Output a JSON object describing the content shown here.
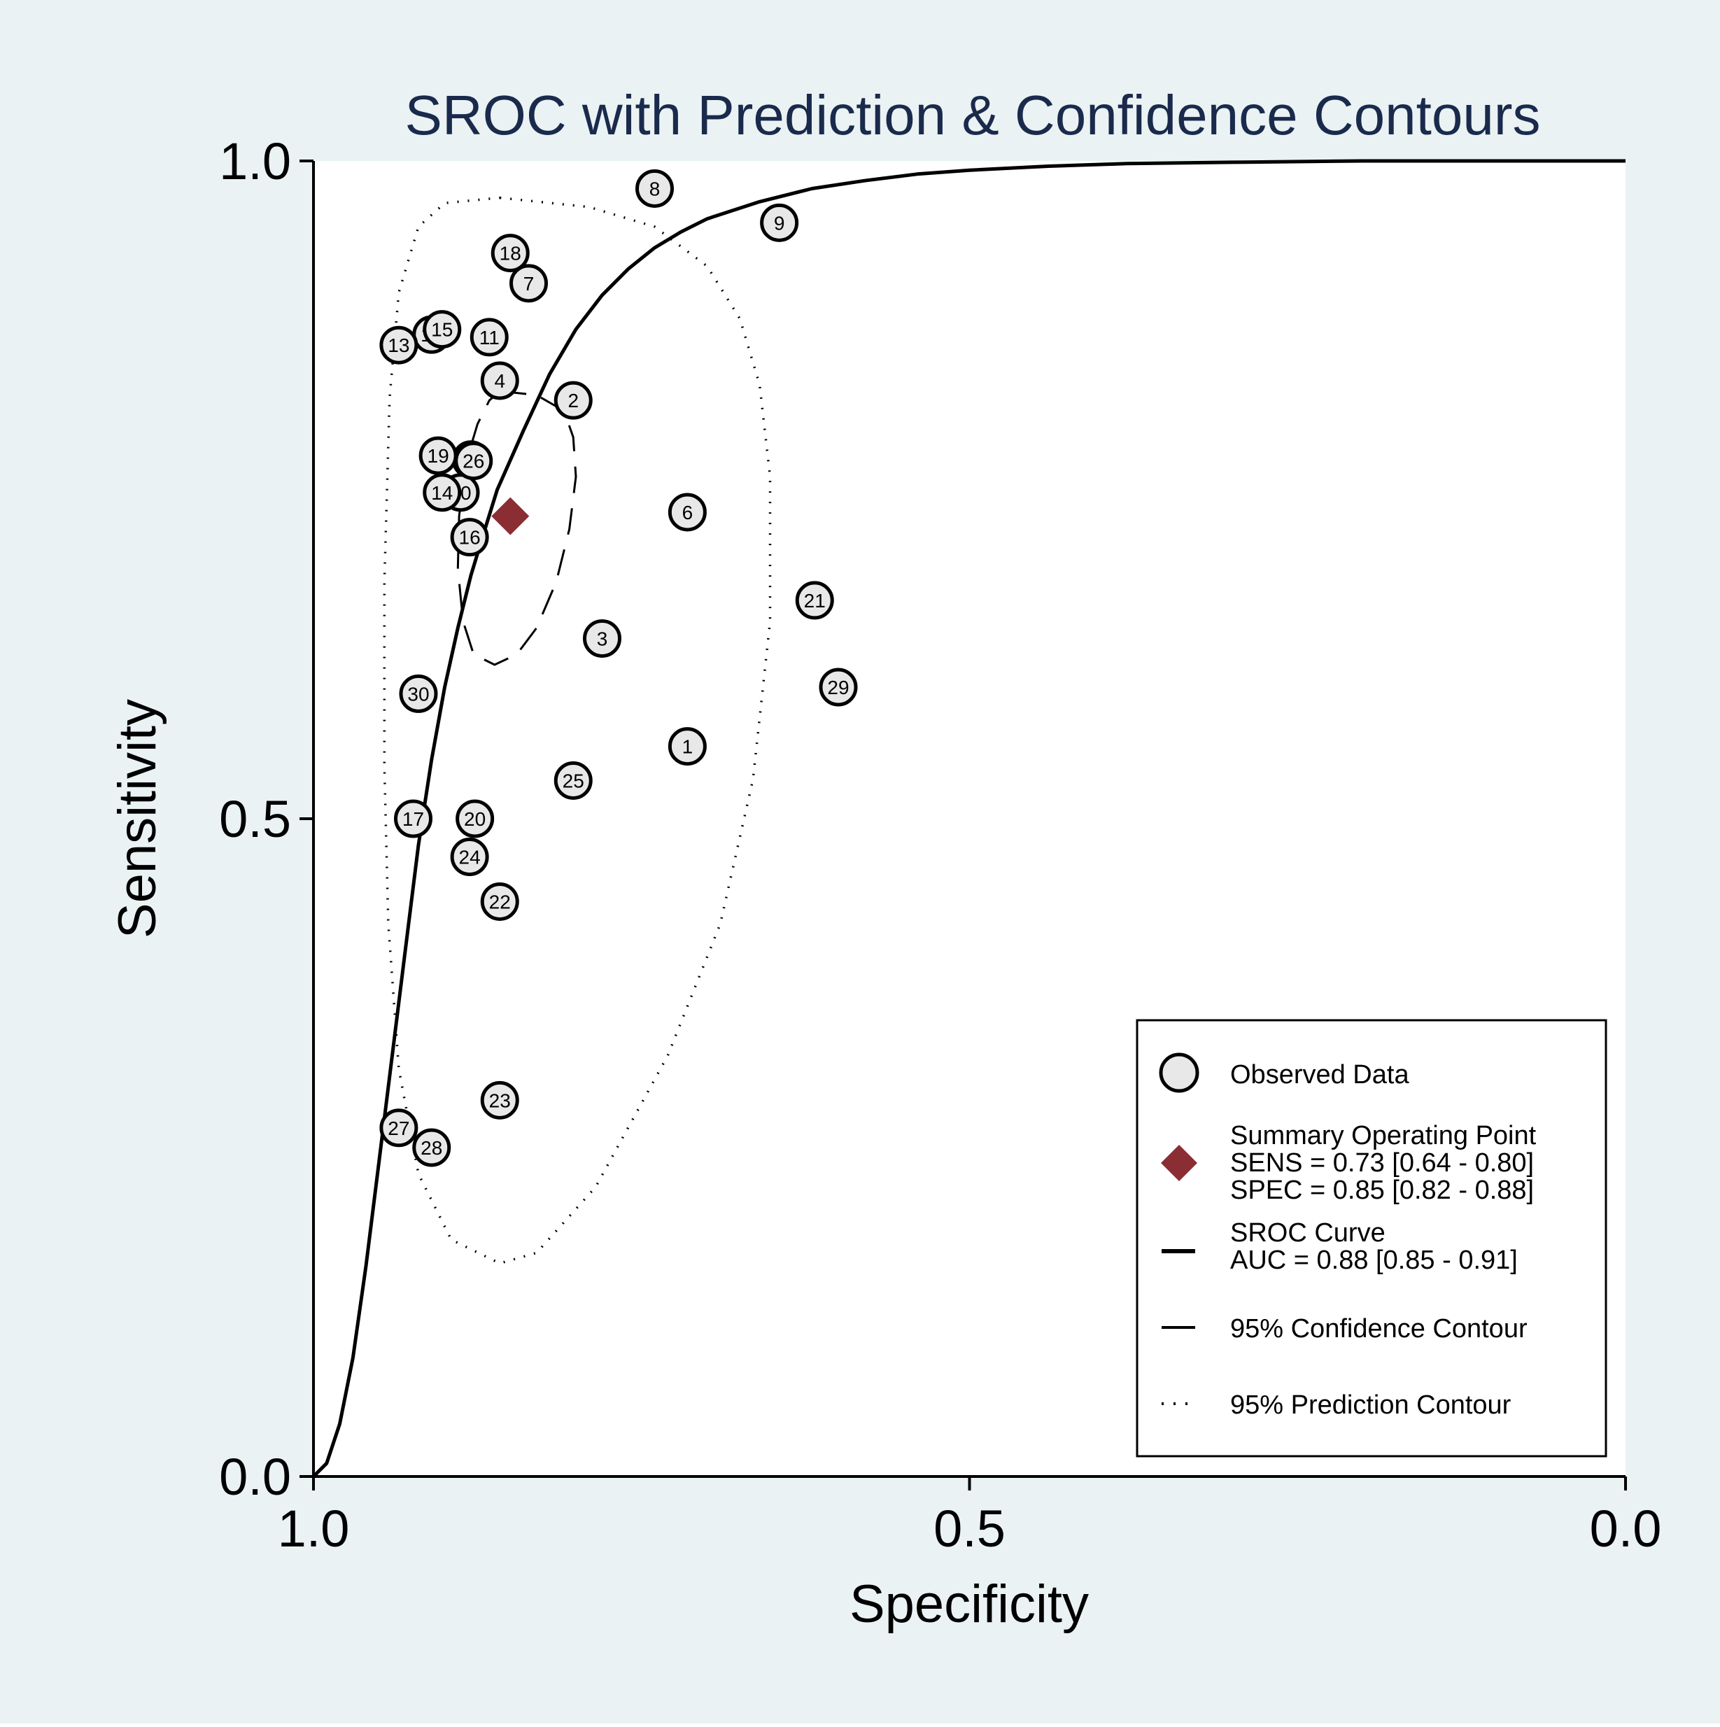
{
  "colors": {
    "outer_background": "#eaf2f3",
    "plot_background": "#ffffff",
    "title": "#1a2a4c",
    "text": "#000000",
    "marker_fill": "#e8e8e8",
    "summary_point": "#8b2e34"
  },
  "chart_data": {
    "type": "scatter",
    "title": "SROC with Prediction & Confidence Contours",
    "xlabel": "Specificity",
    "ylabel": "Sensitivity",
    "xlim": [
      1.0,
      0.0
    ],
    "ylim": [
      0.0,
      1.0
    ],
    "x_reversed": true,
    "x_ticks": [
      1.0,
      0.5,
      0.0
    ],
    "x_tick_labels": [
      "1.0",
      "0.5",
      "0.0"
    ],
    "y_ticks": [
      0.0,
      0.5,
      1.0
    ],
    "y_tick_labels": [
      "0.0",
      "0.5",
      "1.0"
    ],
    "grid": false,
    "legend_position": "bottom-right",
    "observed_studies": [
      {
        "id": "1",
        "spec": 0.715,
        "sens": 0.555
      },
      {
        "id": "2",
        "spec": 0.802,
        "sens": 0.818
      },
      {
        "id": "3",
        "spec": 0.78,
        "sens": 0.637
      },
      {
        "id": "4",
        "spec": 0.858,
        "sens": 0.833
      },
      {
        "id": "5",
        "spec": 0.88,
        "sens": 0.773
      },
      {
        "id": "6",
        "spec": 0.715,
        "sens": 0.733
      },
      {
        "id": "7",
        "spec": 0.836,
        "sens": 0.907
      },
      {
        "id": "8",
        "spec": 0.74,
        "sens": 0.979
      },
      {
        "id": "9",
        "spec": 0.645,
        "sens": 0.953
      },
      {
        "id": "10",
        "spec": 0.888,
        "sens": 0.748
      },
      {
        "id": "11",
        "spec": 0.866,
        "sens": 0.866
      },
      {
        "id": "12",
        "spec": 0.91,
        "sens": 0.868
      },
      {
        "id": "13",
        "spec": 0.935,
        "sens": 0.86
      },
      {
        "id": "14",
        "spec": 0.902,
        "sens": 0.748
      },
      {
        "id": "15",
        "spec": 0.902,
        "sens": 0.872
      },
      {
        "id": "16",
        "spec": 0.881,
        "sens": 0.714
      },
      {
        "id": "17",
        "spec": 0.924,
        "sens": 0.5
      },
      {
        "id": "18",
        "spec": 0.85,
        "sens": 0.93
      },
      {
        "id": "19",
        "spec": 0.905,
        "sens": 0.776
      },
      {
        "id": "20",
        "spec": 0.877,
        "sens": 0.5
      },
      {
        "id": "21",
        "spec": 0.618,
        "sens": 0.666
      },
      {
        "id": "22",
        "spec": 0.858,
        "sens": 0.437
      },
      {
        "id": "23",
        "spec": 0.858,
        "sens": 0.286
      },
      {
        "id": "24",
        "spec": 0.881,
        "sens": 0.471
      },
      {
        "id": "25",
        "spec": 0.802,
        "sens": 0.529
      },
      {
        "id": "26",
        "spec": 0.878,
        "sens": 0.772
      },
      {
        "id": "27",
        "spec": 0.935,
        "sens": 0.265
      },
      {
        "id": "28",
        "spec": 0.91,
        "sens": 0.25
      },
      {
        "id": "29",
        "spec": 0.6,
        "sens": 0.6
      },
      {
        "id": "30",
        "spec": 0.92,
        "sens": 0.595
      }
    ],
    "summary_point": {
      "spec": 0.85,
      "sens": 0.73
    },
    "sroc_curve": [
      [
        1.0,
        0.0
      ],
      [
        0.99,
        0.01
      ],
      [
        0.98,
        0.04
      ],
      [
        0.97,
        0.09
      ],
      [
        0.96,
        0.16
      ],
      [
        0.95,
        0.24
      ],
      [
        0.94,
        0.32
      ],
      [
        0.93,
        0.4
      ],
      [
        0.92,
        0.48
      ],
      [
        0.91,
        0.545
      ],
      [
        0.9,
        0.6
      ],
      [
        0.89,
        0.645
      ],
      [
        0.88,
        0.685
      ],
      [
        0.87,
        0.718
      ],
      [
        0.86,
        0.75
      ],
      [
        0.84,
        0.795
      ],
      [
        0.82,
        0.838
      ],
      [
        0.8,
        0.872
      ],
      [
        0.78,
        0.898
      ],
      [
        0.76,
        0.918
      ],
      [
        0.74,
        0.934
      ],
      [
        0.72,
        0.946
      ],
      [
        0.7,
        0.956
      ],
      [
        0.66,
        0.969
      ],
      [
        0.62,
        0.979
      ],
      [
        0.58,
        0.985
      ],
      [
        0.54,
        0.99
      ],
      [
        0.5,
        0.993
      ],
      [
        0.44,
        0.996
      ],
      [
        0.38,
        0.998
      ],
      [
        0.3,
        0.999
      ],
      [
        0.2,
        1.0
      ],
      [
        0.1,
        1.0
      ],
      [
        0.0,
        1.0
      ]
    ],
    "confidence_contour": [
      [
        0.858,
        0.825
      ],
      [
        0.83,
        0.822
      ],
      [
        0.809,
        0.81
      ],
      [
        0.802,
        0.79
      ],
      [
        0.8,
        0.76
      ],
      [
        0.805,
        0.72
      ],
      [
        0.815,
        0.68
      ],
      [
        0.83,
        0.645
      ],
      [
        0.845,
        0.625
      ],
      [
        0.862,
        0.617
      ],
      [
        0.878,
        0.625
      ],
      [
        0.886,
        0.65
      ],
      [
        0.89,
        0.69
      ],
      [
        0.889,
        0.73
      ],
      [
        0.884,
        0.77
      ],
      [
        0.875,
        0.8
      ],
      [
        0.866,
        0.818
      ],
      [
        0.858,
        0.825
      ]
    ],
    "prediction_contour": [
      [
        0.858,
        0.972
      ],
      [
        0.79,
        0.965
      ],
      [
        0.74,
        0.95
      ],
      [
        0.7,
        0.92
      ],
      [
        0.675,
        0.88
      ],
      [
        0.66,
        0.83
      ],
      [
        0.652,
        0.76
      ],
      [
        0.652,
        0.65
      ],
      [
        0.665,
        0.53
      ],
      [
        0.69,
        0.42
      ],
      [
        0.73,
        0.32
      ],
      [
        0.785,
        0.22
      ],
      [
        0.83,
        0.17
      ],
      [
        0.858,
        0.162
      ],
      [
        0.895,
        0.18
      ],
      [
        0.92,
        0.23
      ],
      [
        0.935,
        0.31
      ],
      [
        0.943,
        0.42
      ],
      [
        0.946,
        0.54
      ],
      [
        0.946,
        0.68
      ],
      [
        0.942,
        0.82
      ],
      [
        0.935,
        0.9
      ],
      [
        0.92,
        0.95
      ],
      [
        0.9,
        0.968
      ],
      [
        0.858,
        0.972
      ]
    ],
    "legend": {
      "observed": "Observed Data",
      "summary_title": "Summary Operating Point",
      "summary_sens": "SENS = 0.73 [0.64 - 0.80]",
      "summary_spec": "SPEC = 0.85 [0.82 - 0.88]",
      "sroc_title": "SROC Curve",
      "sroc_auc": "AUC = 0.88 [0.85 - 0.91]",
      "confidence": "95% Confidence Contour",
      "prediction": "95% Prediction Contour"
    }
  }
}
